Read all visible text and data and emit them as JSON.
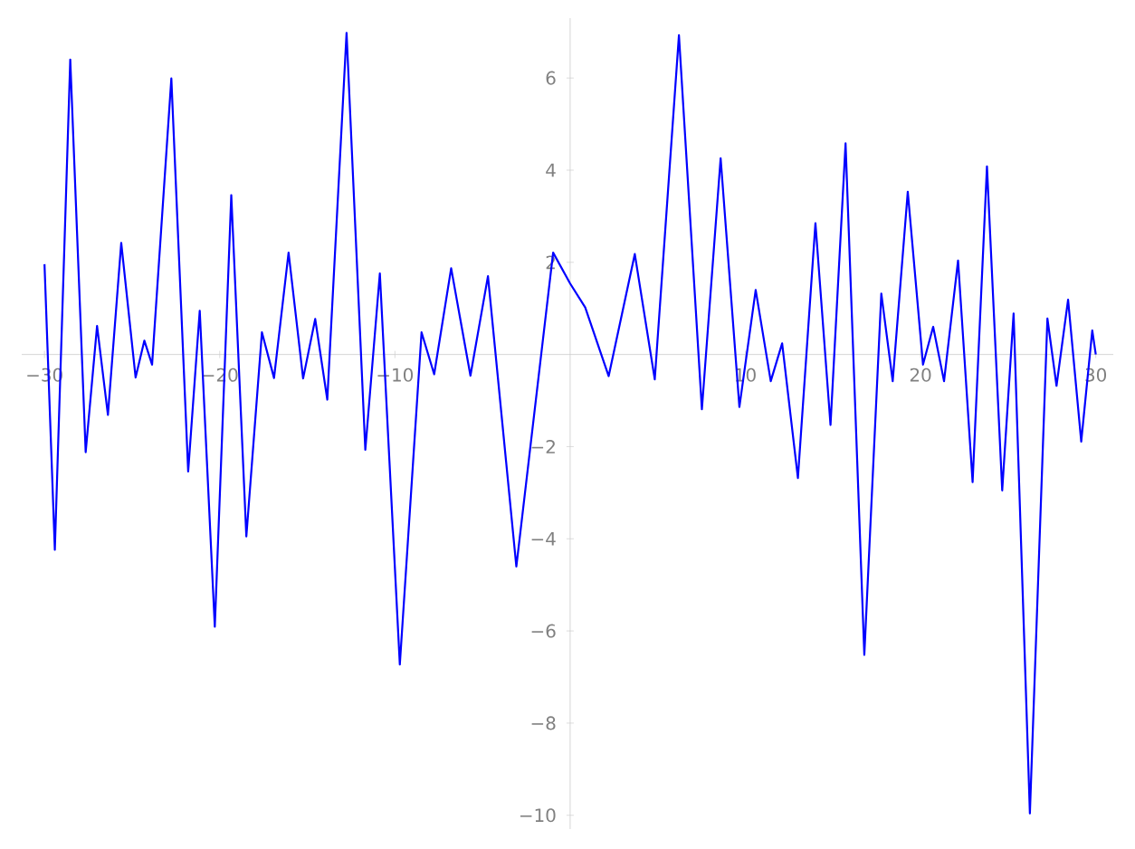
{
  "chart_data": {
    "type": "line",
    "x": [
      -30,
      -29.41,
      -28.53,
      -27.65,
      -27.0,
      -26.38,
      -25.62,
      -24.8,
      -24.3,
      -23.86,
      -22.76,
      -21.8,
      -21.14,
      -20.28,
      -19.34,
      -18.48,
      -17.59,
      -16.9,
      -16.07,
      -15.24,
      -14.55,
      -13.86,
      -12.76,
      -11.69,
      -10.86,
      -9.72,
      -8.48,
      -7.76,
      -6.79,
      -5.69,
      -4.69,
      -3.07,
      -0.97,
      0,
      0.86,
      2.2,
      3.69,
      4.83,
      6.21,
      7.52,
      8.59,
      9.66,
      10.59,
      11.45,
      12.1,
      13.0,
      14.0,
      14.86,
      15.72,
      16.79,
      17.76,
      18.41,
      19.27,
      20.14,
      20.72,
      21.34,
      22.14,
      22.97,
      23.79,
      24.66,
      25.31,
      26.24,
      27.24,
      27.76,
      28.42,
      29.17,
      29.8,
      30
    ],
    "series": [
      {
        "color": "#0000ff",
        "values": [
          1.96,
          -4.24,
          6.4,
          -2.12,
          0.62,
          -1.31,
          2.42,
          -0.5,
          0.3,
          -0.22,
          5.99,
          -2.54,
          0.95,
          -5.91,
          3.46,
          -3.95,
          0.48,
          -0.51,
          2.21,
          -0.52,
          0.77,
          -0.98,
          6.98,
          -2.07,
          1.76,
          -6.73,
          0.48,
          -0.43,
          1.87,
          -0.46,
          1.7,
          -4.6,
          2.21,
          1.54,
          1.02,
          -0.47,
          2.18,
          -0.54,
          6.93,
          -1.19,
          4.26,
          -1.14,
          1.4,
          -0.58,
          0.24,
          -2.68,
          2.85,
          -1.53,
          4.58,
          -6.52,
          1.32,
          -0.58,
          3.53,
          -0.22,
          0.6,
          -0.58,
          2.04,
          -2.77,
          4.08,
          -2.95,
          0.89,
          -9.96,
          0.78,
          -0.68,
          1.19,
          -1.89,
          0.52,
          0.0
        ]
      }
    ],
    "xlim": [
      -31.3,
      31
    ],
    "ylim": [
      -10.3,
      7.3
    ],
    "xticks": [
      {
        "value": -30,
        "label": "−30"
      },
      {
        "value": -20,
        "label": "−20"
      },
      {
        "value": -10,
        "label": "−10"
      },
      10,
      20,
      30
    ],
    "yticks": [
      {
        "value": -10,
        "label": "−10"
      },
      {
        "value": -8,
        "label": "−8"
      },
      {
        "value": -6,
        "label": "−6"
      },
      {
        "value": -4,
        "label": "−4"
      },
      {
        "value": -2,
        "label": "−2"
      },
      2,
      4,
      6
    ],
    "grid": false,
    "marker": "none",
    "line_style": "solid"
  }
}
